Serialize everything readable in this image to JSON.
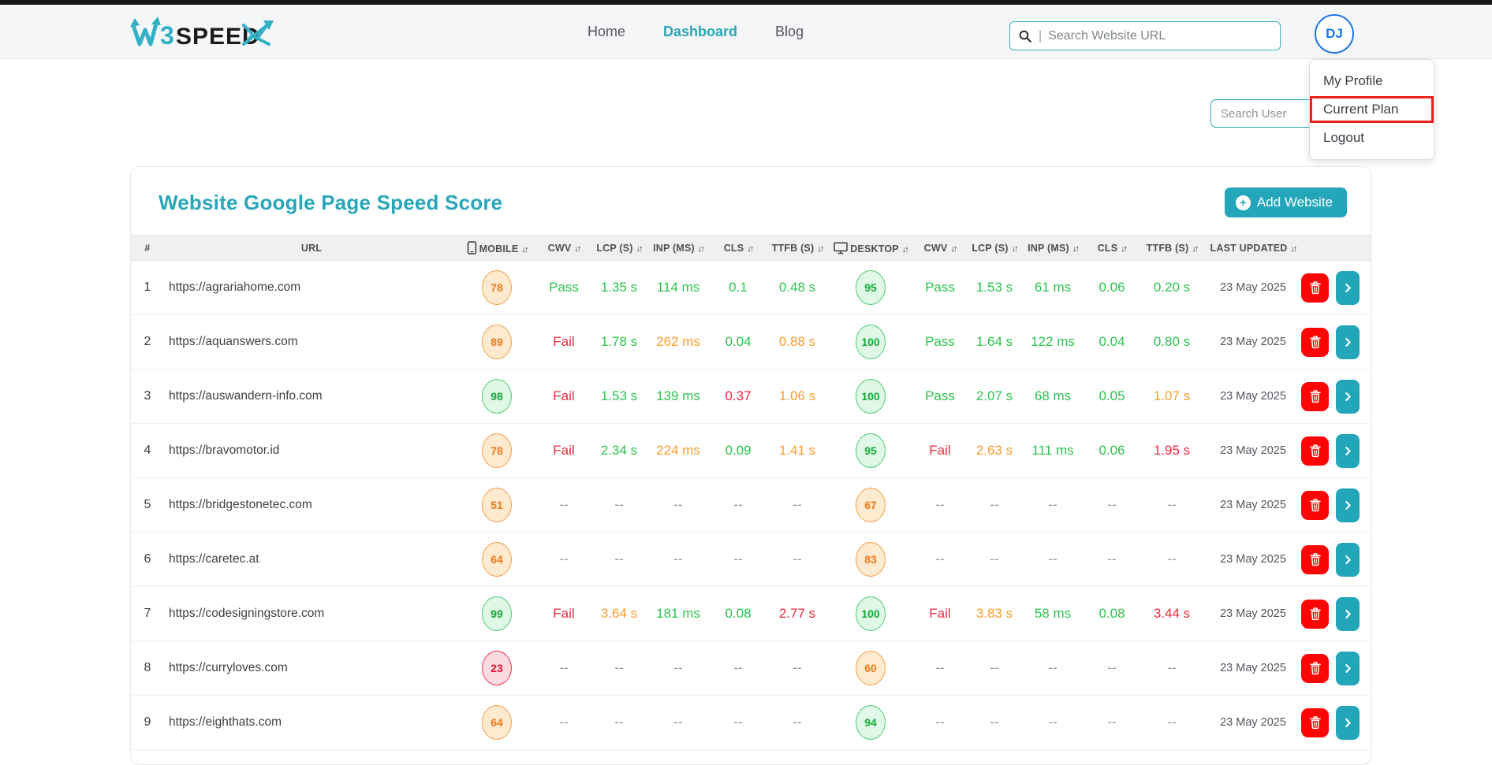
{
  "header": {
    "logo": {
      "part_w": "W",
      "part_3": "3",
      "part_speed": "SPEED"
    },
    "nav": [
      {
        "label": "Home",
        "active": false
      },
      {
        "label": "Dashboard",
        "active": true
      },
      {
        "label": "Blog",
        "active": false
      }
    ],
    "search": {
      "placeholder": "Search Website URL",
      "separator": "|"
    },
    "avatar_initials": "DJ"
  },
  "user_menu": {
    "items": [
      "My Profile",
      "Current Plan",
      "Logout"
    ],
    "highlighted_item": "Current Plan"
  },
  "toolbar": {
    "search_user_placeholder": "Search User"
  },
  "card": {
    "title": "Website Google Page Speed Score",
    "add_button_label": "Add Website"
  },
  "colors": {
    "accent_teal": "#23a6ba",
    "good_green": "#2bc44d",
    "warn_orange": "#fd9c2b",
    "bad_red": "#f4263e",
    "avatar_blue": "#1a73e8",
    "annotation_red": "#e8231d",
    "delete_red": "#fe0505"
  },
  "table": {
    "columns": [
      {
        "label": "#",
        "sortable": false,
        "icon": null
      },
      {
        "label": "URL",
        "sortable": false,
        "icon": null
      },
      {
        "label": "MOBILE",
        "sortable": true,
        "icon": "mobile"
      },
      {
        "label": "CWV",
        "sortable": true,
        "icon": null
      },
      {
        "label": "LCP (S)",
        "sortable": true,
        "icon": null
      },
      {
        "label": "INP (MS)",
        "sortable": true,
        "icon": null
      },
      {
        "label": "CLS",
        "sortable": true,
        "icon": null
      },
      {
        "label": "TTFB (S)",
        "sortable": true,
        "icon": null
      },
      {
        "label": "DESKTOP",
        "sortable": true,
        "icon": "desktop"
      },
      {
        "label": "CWV",
        "sortable": true,
        "icon": null
      },
      {
        "label": "LCP (S)",
        "sortable": true,
        "icon": null
      },
      {
        "label": "INP (MS)",
        "sortable": true,
        "icon": null
      },
      {
        "label": "CLS",
        "sortable": true,
        "icon": null
      },
      {
        "label": "TTFB (S)",
        "sortable": true,
        "icon": null
      },
      {
        "label": "LAST UPDATED",
        "sortable": true,
        "icon": null
      },
      {
        "label": "",
        "sortable": false,
        "icon": null
      }
    ],
    "rows": [
      {
        "index": 1,
        "url": "https://agrariahome.com",
        "mobile": {
          "score": "78",
          "level": "orange",
          "cwv": [
            "Pass",
            "green"
          ],
          "lcp": [
            "1.35 s",
            "green"
          ],
          "inp": [
            "114 ms",
            "green"
          ],
          "cls": [
            "0.1",
            "green"
          ],
          "ttfb": [
            "0.48 s",
            "green"
          ]
        },
        "desktop": {
          "score": "95",
          "level": "green",
          "cwv": [
            "Pass",
            "green"
          ],
          "lcp": [
            "1.53 s",
            "green"
          ],
          "inp": [
            "61 ms",
            "green"
          ],
          "cls": [
            "0.06",
            "green"
          ],
          "ttfb": [
            "0.20 s",
            "green"
          ]
        },
        "updated": "23 May 2025"
      },
      {
        "index": 2,
        "url": "https://aquanswers.com",
        "mobile": {
          "score": "89",
          "level": "orange",
          "cwv": [
            "Fail",
            "red"
          ],
          "lcp": [
            "1.78 s",
            "green"
          ],
          "inp": [
            "262 ms",
            "orange"
          ],
          "cls": [
            "0.04",
            "green"
          ],
          "ttfb": [
            "0.88 s",
            "orange"
          ]
        },
        "desktop": {
          "score": "100",
          "level": "green",
          "cwv": [
            "Pass",
            "green"
          ],
          "lcp": [
            "1.64 s",
            "green"
          ],
          "inp": [
            "122 ms",
            "green"
          ],
          "cls": [
            "0.04",
            "green"
          ],
          "ttfb": [
            "0.80 s",
            "green"
          ]
        },
        "updated": "23 May 2025"
      },
      {
        "index": 3,
        "url": "https://auswandern-info.com",
        "mobile": {
          "score": "98",
          "level": "green",
          "cwv": [
            "Fail",
            "red"
          ],
          "lcp": [
            "1.53 s",
            "green"
          ],
          "inp": [
            "139 ms",
            "green"
          ],
          "cls": [
            "0.37",
            "red"
          ],
          "ttfb": [
            "1.06 s",
            "orange"
          ]
        },
        "desktop": {
          "score": "100",
          "level": "green",
          "cwv": [
            "Pass",
            "green"
          ],
          "lcp": [
            "2.07 s",
            "green"
          ],
          "inp": [
            "68 ms",
            "green"
          ],
          "cls": [
            "0.05",
            "green"
          ],
          "ttfb": [
            "1.07 s",
            "orange"
          ]
        },
        "updated": "23 May 2025"
      },
      {
        "index": 4,
        "url": "https://bravomotor.id",
        "mobile": {
          "score": "78",
          "level": "orange",
          "cwv": [
            "Fail",
            "red"
          ],
          "lcp": [
            "2.34 s",
            "green"
          ],
          "inp": [
            "224 ms",
            "orange"
          ],
          "cls": [
            "0.09",
            "green"
          ],
          "ttfb": [
            "1.41 s",
            "orange"
          ]
        },
        "desktop": {
          "score": "95",
          "level": "green",
          "cwv": [
            "Fail",
            "red"
          ],
          "lcp": [
            "2.63 s",
            "orange"
          ],
          "inp": [
            "111 ms",
            "green"
          ],
          "cls": [
            "0.06",
            "green"
          ],
          "ttfb": [
            "1.95 s",
            "red"
          ]
        },
        "updated": "23 May 2025"
      },
      {
        "index": 5,
        "url": "https://bridgestonetec.com",
        "mobile": {
          "score": "51",
          "level": "orange",
          "cwv": [
            "--",
            "gray"
          ],
          "lcp": [
            "--",
            "gray"
          ],
          "inp": [
            "--",
            "gray"
          ],
          "cls": [
            "--",
            "gray"
          ],
          "ttfb": [
            "--",
            "gray"
          ]
        },
        "desktop": {
          "score": "67",
          "level": "orange",
          "cwv": [
            "--",
            "gray"
          ],
          "lcp": [
            "--",
            "gray"
          ],
          "inp": [
            "--",
            "gray"
          ],
          "cls": [
            "--",
            "gray"
          ],
          "ttfb": [
            "--",
            "gray"
          ]
        },
        "updated": "23 May 2025"
      },
      {
        "index": 6,
        "url": "https://caretec.at",
        "mobile": {
          "score": "64",
          "level": "orange",
          "cwv": [
            "--",
            "gray"
          ],
          "lcp": [
            "--",
            "gray"
          ],
          "inp": [
            "--",
            "gray"
          ],
          "cls": [
            "--",
            "gray"
          ],
          "ttfb": [
            "--",
            "gray"
          ]
        },
        "desktop": {
          "score": "83",
          "level": "orange",
          "cwv": [
            "--",
            "gray"
          ],
          "lcp": [
            "--",
            "gray"
          ],
          "inp": [
            "--",
            "gray"
          ],
          "cls": [
            "--",
            "gray"
          ],
          "ttfb": [
            "--",
            "gray"
          ]
        },
        "updated": "23 May 2025"
      },
      {
        "index": 7,
        "url": "https://codesigningstore.com",
        "mobile": {
          "score": "99",
          "level": "green",
          "cwv": [
            "Fail",
            "red"
          ],
          "lcp": [
            "3.64 s",
            "orange"
          ],
          "inp": [
            "181 ms",
            "green"
          ],
          "cls": [
            "0.08",
            "green"
          ],
          "ttfb": [
            "2.77 s",
            "red"
          ]
        },
        "desktop": {
          "score": "100",
          "level": "green",
          "cwv": [
            "Fail",
            "red"
          ],
          "lcp": [
            "3.83 s",
            "orange"
          ],
          "inp": [
            "58 ms",
            "green"
          ],
          "cls": [
            "0.08",
            "green"
          ],
          "ttfb": [
            "3.44 s",
            "red"
          ]
        },
        "updated": "23 May 2025"
      },
      {
        "index": 8,
        "url": "https://curryloves.com",
        "mobile": {
          "score": "23",
          "level": "red",
          "cwv": [
            "--",
            "gray"
          ],
          "lcp": [
            "--",
            "gray"
          ],
          "inp": [
            "--",
            "gray"
          ],
          "cls": [
            "--",
            "gray"
          ],
          "ttfb": [
            "--",
            "gray"
          ]
        },
        "desktop": {
          "score": "60",
          "level": "orange",
          "cwv": [
            "--",
            "gray"
          ],
          "lcp": [
            "--",
            "gray"
          ],
          "inp": [
            "--",
            "gray"
          ],
          "cls": [
            "--",
            "gray"
          ],
          "ttfb": [
            "--",
            "gray"
          ]
        },
        "updated": "23 May 2025"
      },
      {
        "index": 9,
        "url": "https://eighthats.com",
        "mobile": {
          "score": "64",
          "level": "orange",
          "cwv": [
            "--",
            "gray"
          ],
          "lcp": [
            "--",
            "gray"
          ],
          "inp": [
            "--",
            "gray"
          ],
          "cls": [
            "--",
            "gray"
          ],
          "ttfb": [
            "--",
            "gray"
          ]
        },
        "desktop": {
          "score": "94",
          "level": "green",
          "cwv": [
            "--",
            "gray"
          ],
          "lcp": [
            "--",
            "gray"
          ],
          "inp": [
            "--",
            "gray"
          ],
          "cls": [
            "--",
            "gray"
          ],
          "ttfb": [
            "--",
            "gray"
          ]
        },
        "updated": "23 May 2025"
      }
    ]
  }
}
